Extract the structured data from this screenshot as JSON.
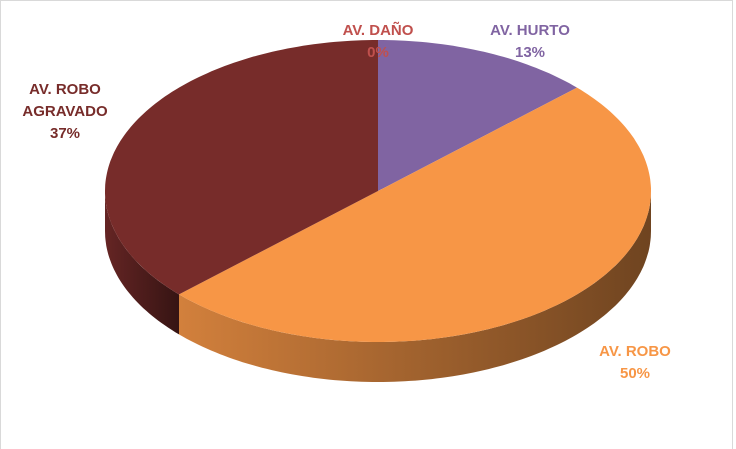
{
  "chart_data": {
    "type": "pie",
    "categories": [
      "AV. DAÑO",
      "AV. HURTO",
      "AV. ROBO",
      "AV. ROBO AGRAVADO"
    ],
    "values": [
      0,
      13,
      50,
      37
    ],
    "value_labels": [
      "0%",
      "13%",
      "50%",
      "37%"
    ],
    "colors": [
      "#c0504d",
      "#8064a2",
      "#f79646",
      "#772c2a"
    ]
  }
}
